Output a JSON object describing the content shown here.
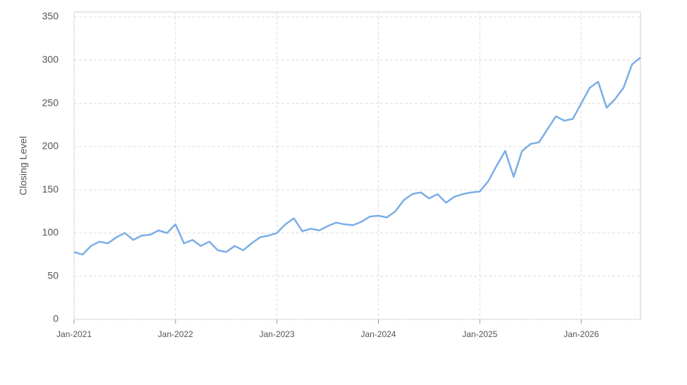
{
  "chart_data": {
    "type": "line",
    "y_label": "Closing Level",
    "x": [
      "2021-01",
      "2021-02",
      "2021-03",
      "2021-04",
      "2021-05",
      "2021-06",
      "2021-07",
      "2021-08",
      "2021-09",
      "2021-10",
      "2021-11",
      "2021-12",
      "2022-01",
      "2022-02",
      "2022-03",
      "2022-04",
      "2022-05",
      "2022-06",
      "2022-07",
      "2022-08",
      "2022-09",
      "2022-10",
      "2022-11",
      "2022-12",
      "2023-01",
      "2023-02",
      "2023-03",
      "2023-04",
      "2023-05",
      "2023-06",
      "2023-07",
      "2023-08",
      "2023-09",
      "2023-10",
      "2023-11",
      "2023-12",
      "2024-01",
      "2024-02",
      "2024-03",
      "2024-04",
      "2024-05",
      "2024-06",
      "2024-07",
      "2024-08",
      "2024-09",
      "2024-10",
      "2024-11",
      "2024-12",
      "2025-01",
      "2025-02",
      "2025-03",
      "2025-04",
      "2025-05",
      "2025-06",
      "2025-07",
      "2025-08",
      "2025-09",
      "2025-10",
      "2025-11",
      "2025-12",
      "2026-01",
      "2026-02",
      "2026-03",
      "2026-04",
      "2026-05",
      "2026-06",
      "2026-07",
      "2026-08"
    ],
    "series": [
      {
        "name": "Closing Level",
        "color": "#7aaee6",
        "values": [
          78,
          75,
          85,
          90,
          88,
          95,
          100,
          92,
          97,
          98,
          103,
          100,
          110,
          88,
          92,
          85,
          90,
          80,
          78,
          85,
          80,
          88,
          95,
          97,
          100,
          110,
          117,
          102,
          105,
          103,
          108,
          112,
          110,
          109,
          113,
          119,
          120,
          118,
          125,
          138,
          145,
          147,
          140,
          145,
          135,
          142,
          145,
          147,
          148,
          160,
          178,
          195,
          165,
          195,
          203,
          205,
          220,
          235,
          230,
          232,
          250,
          268,
          275,
          245,
          255,
          268,
          295,
          303
        ]
      }
    ],
    "xlim": [
      "2021-01",
      "2026-08"
    ],
    "xticks": [
      {
        "value": "2021-01",
        "label": "Jan-2021"
      },
      {
        "value": "2022-01",
        "label": "Jan-2022"
      },
      {
        "value": "2023-01",
        "label": "Jan-2023"
      },
      {
        "value": "2024-01",
        "label": "Jan-2024"
      },
      {
        "value": "2025-01",
        "label": "Jan-2025"
      },
      {
        "value": "2026-01",
        "label": "Jan-2026"
      }
    ],
    "ylim": [
      0,
      350
    ],
    "yticks": [
      0,
      50,
      100,
      150,
      200,
      250,
      300,
      350
    ],
    "grid": true
  }
}
